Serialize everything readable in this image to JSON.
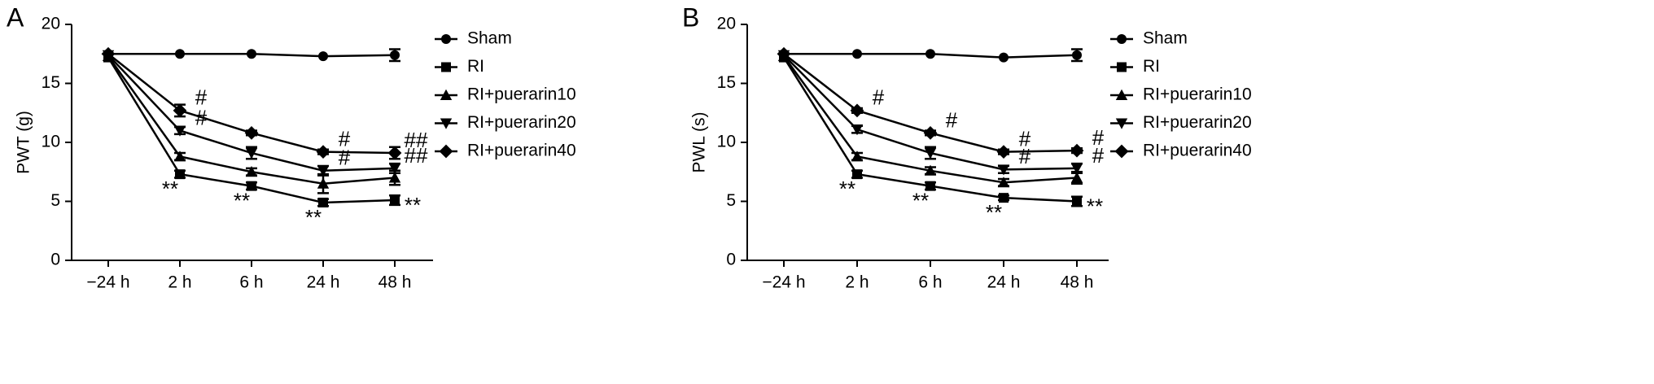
{
  "chart_data": [
    {
      "type": "line",
      "panel": "A",
      "ylabel": "PWT (g)",
      "categories": [
        "−24 h",
        "2 h",
        "6 h",
        "24 h",
        "48 h"
      ],
      "ylim": [
        0,
        20
      ],
      "yticks": [
        0,
        5,
        10,
        15,
        20
      ],
      "series": [
        {
          "name": "Sham",
          "color": "#000000",
          "marker": "circle",
          "values": [
            17.5,
            17.5,
            17.5,
            17.3,
            17.4
          ],
          "errors": [
            0,
            0,
            0,
            0,
            0.5
          ],
          "marks": [
            null,
            null,
            null,
            null,
            null
          ]
        },
        {
          "name": "RI",
          "color": "#000000",
          "marker": "square",
          "values": [
            17.2,
            7.3,
            6.3,
            4.9,
            5.1
          ],
          "errors": [
            0,
            0.3,
            0.3,
            0.3,
            0.4
          ],
          "marks": [
            null,
            "**",
            "**",
            "**",
            "**"
          ]
        },
        {
          "name": "RI+puerarin10",
          "color": "#000000",
          "marker": "triangle-up",
          "values": [
            17.3,
            8.8,
            7.5,
            6.5,
            7.0
          ],
          "errors": [
            0,
            0.3,
            0.3,
            0.8,
            0.6
          ],
          "marks": [
            null,
            null,
            null,
            null,
            null
          ]
        },
        {
          "name": "RI+puerarin20",
          "color": "#000000",
          "marker": "triangle-down",
          "values": [
            17.4,
            11.0,
            9.1,
            7.6,
            7.8
          ],
          "errors": [
            0,
            0.3,
            0.5,
            0.4,
            0.4
          ],
          "marks": [
            null,
            "#",
            null,
            "#",
            "##"
          ]
        },
        {
          "name": "RI+puerarin40",
          "color": "#000000",
          "marker": "diamond",
          "values": [
            17.5,
            12.7,
            10.8,
            9.2,
            9.1
          ],
          "errors": [
            0,
            0.5,
            0.2,
            0.2,
            0.5
          ],
          "marks": [
            null,
            "#",
            null,
            "#",
            "##"
          ]
        }
      ]
    },
    {
      "type": "line",
      "panel": "B",
      "ylabel": "PWL (s)",
      "categories": [
        "−24 h",
        "2 h",
        "6 h",
        "24 h",
        "48 h"
      ],
      "ylim": [
        0,
        20
      ],
      "yticks": [
        0,
        5,
        10,
        15,
        20
      ],
      "series": [
        {
          "name": "Sham",
          "color": "#000000",
          "marker": "circle",
          "values": [
            17.5,
            17.5,
            17.5,
            17.2,
            17.4
          ],
          "errors": [
            0,
            0,
            0,
            0,
            0.5
          ],
          "marks": [
            null,
            null,
            null,
            null,
            null
          ]
        },
        {
          "name": "RI",
          "color": "#000000",
          "marker": "square",
          "values": [
            17.2,
            7.3,
            6.3,
            5.3,
            5.0
          ],
          "errors": [
            0,
            0.3,
            0.3,
            0.2,
            0.4
          ],
          "marks": [
            null,
            "**",
            "**",
            "**",
            "**"
          ]
        },
        {
          "name": "RI+puerarin10",
          "color": "#000000",
          "marker": "triangle-up",
          "values": [
            17.3,
            8.8,
            7.6,
            6.6,
            7.0
          ],
          "errors": [
            0,
            0.3,
            0.3,
            0.3,
            0.5
          ],
          "marks": [
            null,
            null,
            null,
            null,
            null
          ]
        },
        {
          "name": "RI+puerarin20",
          "color": "#000000",
          "marker": "triangle-down",
          "values": [
            17.4,
            11.1,
            9.1,
            7.7,
            7.8
          ],
          "errors": [
            0,
            0.3,
            0.5,
            0.3,
            0.4
          ],
          "marks": [
            null,
            null,
            null,
            "#",
            "#"
          ]
        },
        {
          "name": "RI+puerarin40",
          "color": "#000000",
          "marker": "diamond",
          "values": [
            17.5,
            12.7,
            10.8,
            9.2,
            9.3
          ],
          "errors": [
            0,
            0.2,
            0.2,
            0.2,
            0.2
          ],
          "marks": [
            null,
            "#",
            "#",
            "#",
            "#"
          ]
        }
      ]
    }
  ]
}
